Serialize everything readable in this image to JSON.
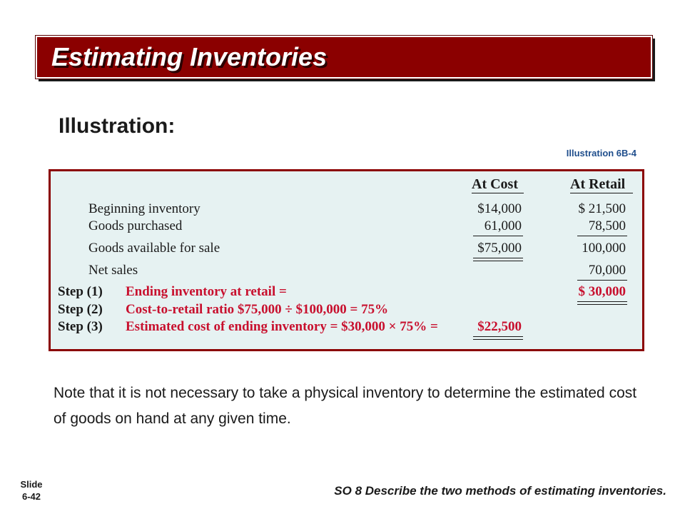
{
  "slide": {
    "title": "Estimating Inventories",
    "heading": "Illustration:",
    "illustration_ref": "Illustration 6B-4",
    "note": "Note that it is not necessary to take a physical inventory to determine the estimated cost of goods on hand at any given time.",
    "slide_label": "Slide",
    "slide_number": "6-42",
    "study_objective": "SO 8  Describe the two methods of estimating inventories."
  },
  "table": {
    "col_cost": "At Cost",
    "col_retail": "At Retail",
    "rows": [
      {
        "label": "Beginning inventory",
        "cost": "$14,000",
        "retail": "$ 21,500"
      },
      {
        "label": "Goods purchased",
        "cost": "61,000",
        "retail": "78,500"
      },
      {
        "label": "Goods available for sale",
        "cost": "$75,000",
        "retail": "100,000"
      },
      {
        "label": "Net sales",
        "cost": "",
        "retail": "70,000"
      }
    ],
    "steps": [
      {
        "step": "Step (1)",
        "text": "Ending inventory at retail =",
        "cost": "",
        "retail": "$ 30,000"
      },
      {
        "step": "Step (2)",
        "text": "Cost-to-retail ratio $75,000 ÷ $100,000 = 75%",
        "cost": "",
        "retail": ""
      },
      {
        "step": "Step (3)",
        "text": "Estimated cost of ending inventory = $30,000 × 75% =",
        "cost": "$22,500",
        "retail": ""
      }
    ]
  },
  "colors": {
    "title_bar": "#8b0000",
    "panel_bg": "#e6f2f2",
    "highlight_red": "#c8102e",
    "ref_blue": "#1f4e8c"
  }
}
